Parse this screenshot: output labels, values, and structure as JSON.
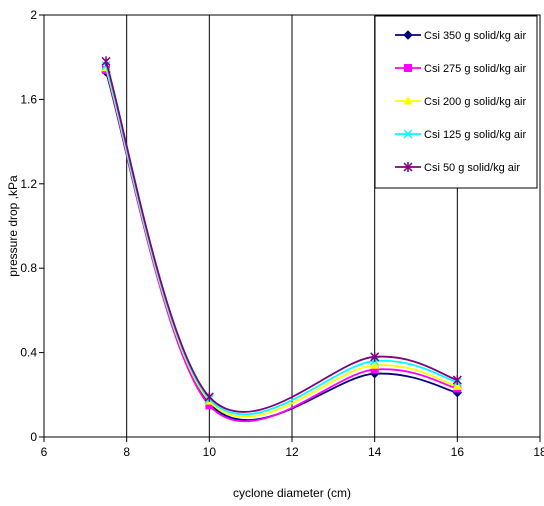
{
  "chart_data": {
    "type": "line",
    "title": "",
    "xlabel": "cyclone diameter (cm)",
    "ylabel": "pressure drop ,kPa",
    "xlim": [
      6,
      18
    ],
    "ylim": [
      0,
      2
    ],
    "xticks": [
      6,
      8,
      10,
      12,
      14,
      16,
      18
    ],
    "yticks": [
      0,
      0.4,
      0.8,
      1.2,
      1.6,
      2
    ],
    "ytick_labels": [
      "0",
      "0.4",
      "0.8",
      "1.2",
      "1.6",
      "2"
    ],
    "grid": "vertical",
    "legend_position": "top-right",
    "x": [
      7.5,
      10,
      14,
      16
    ],
    "series": [
      {
        "name": "Csi 350 g solid/kg air",
        "values": [
          1.73,
          0.16,
          0.3,
          0.21
        ],
        "color": "#000080",
        "marker": "diamond"
      },
      {
        "name": "Csi 275 g solid/kg air",
        "values": [
          1.74,
          0.15,
          0.32,
          0.23
        ],
        "color": "#ff00ff",
        "marker": "square"
      },
      {
        "name": "Csi 200 g solid/kg air",
        "values": [
          1.75,
          0.17,
          0.34,
          0.24
        ],
        "color": "#ffff00",
        "marker": "triangle"
      },
      {
        "name": "Csi 125 g solid/kg air",
        "values": [
          1.76,
          0.18,
          0.36,
          0.26
        ],
        "color": "#00ffff",
        "marker": "x"
      },
      {
        "name": "Csi 50 g solid/kg air",
        "values": [
          1.78,
          0.19,
          0.38,
          0.27
        ],
        "color": "#800080",
        "marker": "star"
      }
    ]
  }
}
